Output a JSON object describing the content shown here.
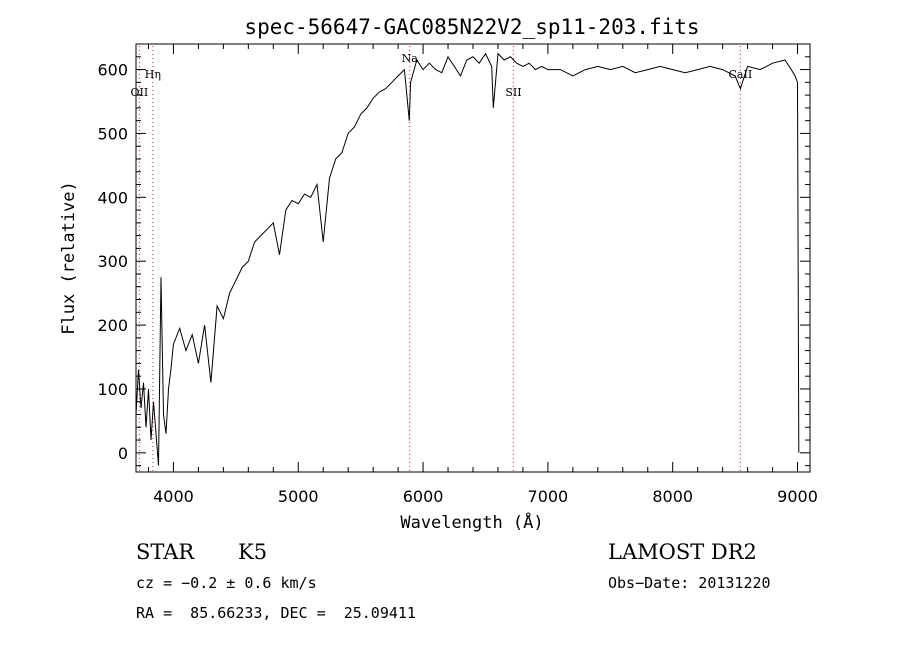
{
  "chart_data": {
    "type": "line",
    "title": "spec-56647-GAC085N22V2_sp11-203.fits",
    "xlabel": "Wavelength (Å)",
    "ylabel": "Flux (relative)",
    "xlim": [
      3700,
      9100
    ],
    "ylim": [
      -30,
      640
    ],
    "xticks": [
      4000,
      5000,
      6000,
      7000,
      8000,
      9000
    ],
    "yticks": [
      0,
      100,
      200,
      300,
      400,
      500,
      600
    ],
    "grid": false,
    "line_color": "#000000",
    "marker_color": "#d02020",
    "series": [
      {
        "x": [
          3700,
          3720,
          3740,
          3760,
          3780,
          3800,
          3820,
          3840,
          3860,
          3880,
          3900,
          3920,
          3940,
          3960,
          3980,
          4000,
          4050,
          4100,
          4150,
          4200,
          4250,
          4300,
          4350,
          4400,
          4450,
          4500,
          4550,
          4600,
          4650,
          4700,
          4750,
          4800,
          4850,
          4900,
          4950,
          5000,
          5050,
          5100,
          5150,
          5200,
          5250,
          5300,
          5350,
          5400,
          5450,
          5500,
          5550,
          5600,
          5650,
          5700,
          5750,
          5800,
          5850,
          5890,
          5900,
          5950,
          6000,
          6050,
          6100,
          6150,
          6200,
          6250,
          6300,
          6350,
          6400,
          6450,
          6500,
          6550,
          6563,
          6600,
          6650,
          6700,
          6750,
          6800,
          6850,
          6900,
          6950,
          7000,
          7100,
          7200,
          7300,
          7400,
          7500,
          7600,
          7700,
          7800,
          7900,
          8000,
          8100,
          8200,
          8300,
          8400,
          8500,
          8542,
          8600,
          8700,
          8800,
          8900,
          8950,
          8980,
          9000,
          9010
        ],
        "y": [
          60,
          130,
          70,
          110,
          40,
          100,
          20,
          80,
          30,
          -20,
          275,
          60,
          30,
          100,
          130,
          170,
          195,
          160,
          185,
          140,
          200,
          110,
          230,
          210,
          250,
          270,
          290,
          300,
          330,
          340,
          350,
          360,
          310,
          380,
          395,
          390,
          405,
          400,
          420,
          330,
          430,
          460,
          470,
          500,
          510,
          530,
          540,
          555,
          565,
          570,
          580,
          590,
          600,
          520,
          580,
          615,
          600,
          610,
          600,
          595,
          620,
          605,
          590,
          615,
          620,
          610,
          625,
          605,
          540,
          625,
          615,
          620,
          610,
          605,
          610,
          600,
          605,
          600,
          600,
          590,
          600,
          605,
          600,
          605,
          595,
          600,
          605,
          600,
          595,
          600,
          605,
          600,
          590,
          570,
          605,
          600,
          610,
          615,
          600,
          590,
          580,
          0
        ]
      }
    ],
    "lines": [
      {
        "label": "OII",
        "x": 3727
      },
      {
        "label": "Hη",
        "x": 3835
      },
      {
        "label": "Na",
        "x": 5893
      },
      {
        "label": "SII",
        "x": 6724
      },
      {
        "label": "CaII",
        "x": 8542
      }
    ]
  },
  "info": {
    "class": "STAR",
    "subclass": "K5",
    "survey": "LAMOST DR2",
    "cz": "cz = −0.2 ± 0.6 km/s",
    "obs_date": "Obs−Date: 20131220",
    "coords": "RA =  85.66233, DEC =  25.09411"
  }
}
